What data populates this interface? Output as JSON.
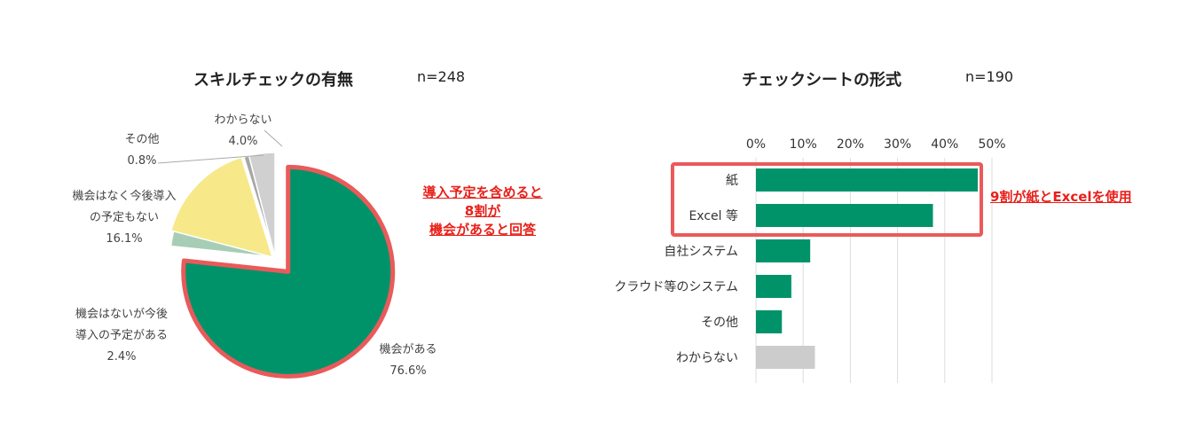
{
  "chart_data": [
    {
      "type": "pie",
      "title": "スキルチェックの有無",
      "n_label": "n=248",
      "slices": [
        {
          "label": "機会がある",
          "value": 76.6,
          "value_label": "76.6%",
          "color": "#00936a"
        },
        {
          "label": "機会はないが今後導入の予定がある",
          "value": 2.4,
          "value_label": "2.4%",
          "color": "#a7cdb6",
          "label_lines": [
            "機会はないが今後",
            "導入の予定がある"
          ]
        },
        {
          "label": "機会はなく今後導入の予定もない",
          "value": 16.1,
          "value_label": "16.1%",
          "color": "#f7e88a",
          "label_lines": [
            "機会はなく今後導入",
            "の予定もない"
          ]
        },
        {
          "label": "その他",
          "value": 0.8,
          "value_label": "0.8%",
          "color": "#a6a6a6"
        },
        {
          "label": "わからない",
          "value": 4.0,
          "value_label": "4.0%",
          "color": "#d0d0d0"
        }
      ],
      "highlighted_slice": "機会がある",
      "highlight_color": "#ea5a5a",
      "annotation_lines": [
        "導入予定を含めると",
        "8割が",
        "機会があると回答"
      ]
    },
    {
      "type": "bar",
      "orientation": "horizontal",
      "title": "チェックシートの形式",
      "n_label": "n=190",
      "categories": [
        "紙",
        "Excel 等",
        "自社システム",
        "クラウド等のシステム",
        "その他",
        "わからない"
      ],
      "values": [
        47,
        37.5,
        11.5,
        7.5,
        5.5,
        12.5
      ],
      "bar_colors": [
        "#00936a",
        "#00936a",
        "#00936a",
        "#00936a",
        "#00936a",
        "#cccccc"
      ],
      "xlim": [
        0,
        50
      ],
      "xticks": [
        "0%",
        "10%",
        "20%",
        "30%",
        "40%",
        "50%"
      ],
      "grid": true,
      "highlighted_categories": [
        "紙",
        "Excel 等"
      ],
      "highlight_color": "#ea5a5a",
      "annotation": "9割が紙とExcelを使用"
    }
  ]
}
